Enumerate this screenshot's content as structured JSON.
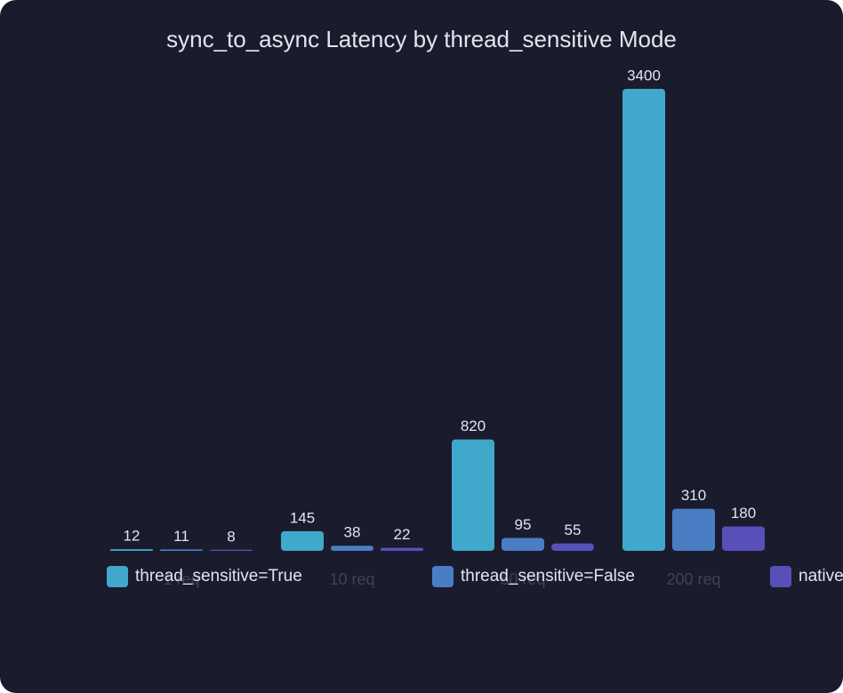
{
  "chart_data": {
    "type": "bar",
    "title": "sync_to_async Latency by thread_sensitive Mode",
    "categories": [
      "1 req",
      "10 req",
      "50 req",
      "200 req"
    ],
    "series": [
      {
        "name": "thread_sensitive=True",
        "color": "#40a8cb",
        "values": [
          12,
          145,
          820,
          3400
        ]
      },
      {
        "name": "thread_sensitive=False",
        "color": "#4a7ec4",
        "values": [
          11,
          38,
          95,
          310
        ]
      },
      {
        "name": "native async",
        "color": "#5650b8",
        "values": [
          8,
          22,
          55,
          180
        ]
      }
    ],
    "ylim": [
      0,
      3400
    ]
  }
}
